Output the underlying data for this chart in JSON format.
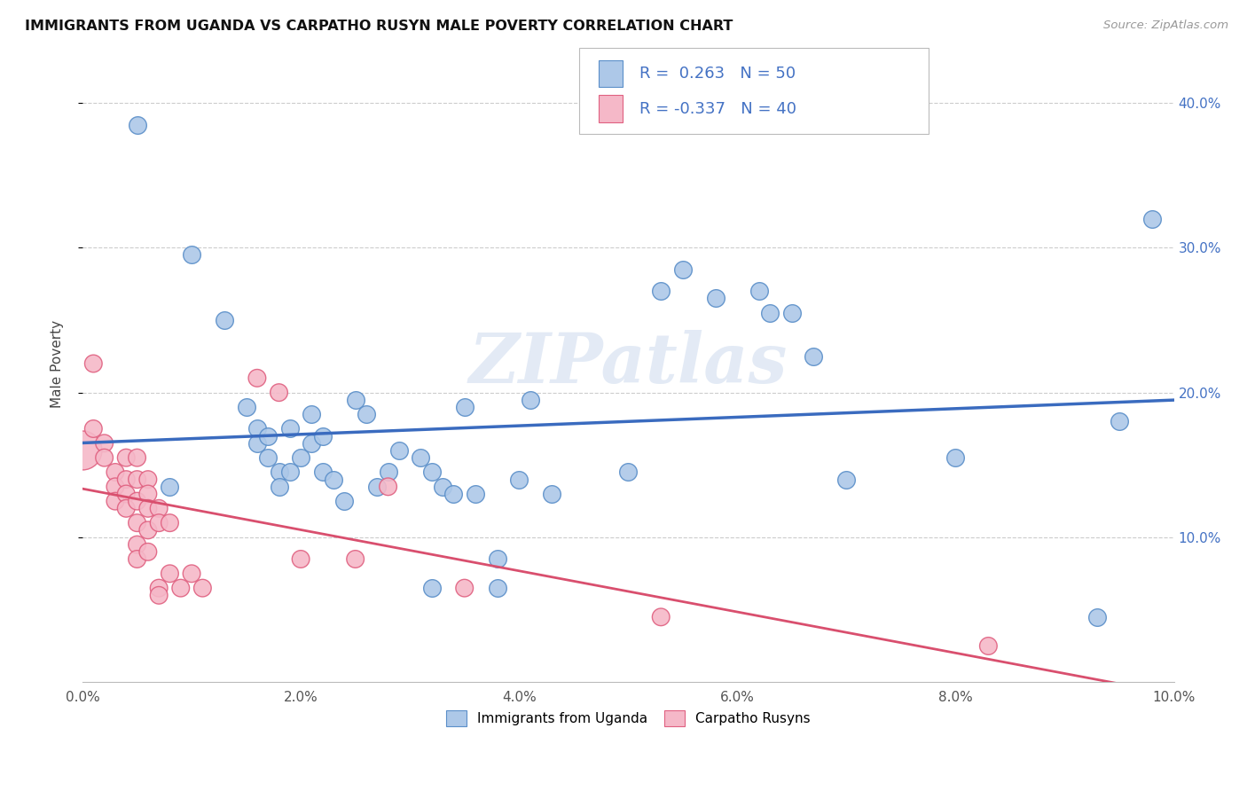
{
  "title": "IMMIGRANTS FROM UGANDA VS CARPATHO RUSYN MALE POVERTY CORRELATION CHART",
  "source": "Source: ZipAtlas.com",
  "ylabel": "Male Poverty",
  "xlim": [
    0,
    0.1
  ],
  "ylim": [
    0,
    0.44
  ],
  "xtick_labels": [
    "0.0%",
    "2.0%",
    "4.0%",
    "6.0%",
    "8.0%",
    "10.0%"
  ],
  "xtick_vals": [
    0.0,
    0.02,
    0.04,
    0.06,
    0.08,
    0.1
  ],
  "ytick_positions": [
    0.1,
    0.2,
    0.3,
    0.4
  ],
  "ytick_labels_right": [
    "10.0%",
    "20.0%",
    "30.0%",
    "40.0%"
  ],
  "legend_labels": [
    "Immigrants from Uganda",
    "Carpatho Rusyns"
  ],
  "R_blue": 0.263,
  "N_blue": 50,
  "R_pink": -0.337,
  "N_pink": 40,
  "color_blue": "#adc8e8",
  "color_pink": "#f5b8c8",
  "edge_blue": "#5b8fc9",
  "edge_pink": "#e06080",
  "line_blue": "#3a6bbf",
  "line_pink": "#d94f6e",
  "watermark": "ZIPatlas",
  "dot_size": 200,
  "blue_points": [
    [
      0.005,
      0.385
    ],
    [
      0.008,
      0.135
    ],
    [
      0.01,
      0.295
    ],
    [
      0.013,
      0.25
    ],
    [
      0.015,
      0.19
    ],
    [
      0.016,
      0.175
    ],
    [
      0.016,
      0.165
    ],
    [
      0.017,
      0.17
    ],
    [
      0.017,
      0.155
    ],
    [
      0.018,
      0.145
    ],
    [
      0.018,
      0.135
    ],
    [
      0.019,
      0.175
    ],
    [
      0.019,
      0.145
    ],
    [
      0.02,
      0.155
    ],
    [
      0.021,
      0.185
    ],
    [
      0.021,
      0.165
    ],
    [
      0.022,
      0.145
    ],
    [
      0.022,
      0.17
    ],
    [
      0.023,
      0.14
    ],
    [
      0.024,
      0.125
    ],
    [
      0.025,
      0.195
    ],
    [
      0.026,
      0.185
    ],
    [
      0.027,
      0.135
    ],
    [
      0.028,
      0.145
    ],
    [
      0.029,
      0.16
    ],
    [
      0.031,
      0.155
    ],
    [
      0.032,
      0.145
    ],
    [
      0.032,
      0.065
    ],
    [
      0.033,
      0.135
    ],
    [
      0.034,
      0.13
    ],
    [
      0.035,
      0.19
    ],
    [
      0.036,
      0.13
    ],
    [
      0.038,
      0.085
    ],
    [
      0.038,
      0.065
    ],
    [
      0.04,
      0.14
    ],
    [
      0.041,
      0.195
    ],
    [
      0.043,
      0.13
    ],
    [
      0.05,
      0.145
    ],
    [
      0.053,
      0.27
    ],
    [
      0.055,
      0.285
    ],
    [
      0.058,
      0.265
    ],
    [
      0.062,
      0.27
    ],
    [
      0.063,
      0.255
    ],
    [
      0.065,
      0.255
    ],
    [
      0.067,
      0.225
    ],
    [
      0.07,
      0.14
    ],
    [
      0.08,
      0.155
    ],
    [
      0.093,
      0.045
    ],
    [
      0.095,
      0.18
    ],
    [
      0.098,
      0.32
    ]
  ],
  "pink_points": [
    [
      0.0,
      0.16
    ],
    [
      0.001,
      0.22
    ],
    [
      0.001,
      0.175
    ],
    [
      0.002,
      0.165
    ],
    [
      0.002,
      0.155
    ],
    [
      0.003,
      0.145
    ],
    [
      0.003,
      0.135
    ],
    [
      0.003,
      0.125
    ],
    [
      0.004,
      0.155
    ],
    [
      0.004,
      0.14
    ],
    [
      0.004,
      0.13
    ],
    [
      0.004,
      0.12
    ],
    [
      0.005,
      0.155
    ],
    [
      0.005,
      0.14
    ],
    [
      0.005,
      0.125
    ],
    [
      0.005,
      0.11
    ],
    [
      0.005,
      0.095
    ],
    [
      0.005,
      0.085
    ],
    [
      0.006,
      0.14
    ],
    [
      0.006,
      0.13
    ],
    [
      0.006,
      0.12
    ],
    [
      0.006,
      0.105
    ],
    [
      0.006,
      0.09
    ],
    [
      0.007,
      0.12
    ],
    [
      0.007,
      0.11
    ],
    [
      0.007,
      0.065
    ],
    [
      0.007,
      0.06
    ],
    [
      0.008,
      0.11
    ],
    [
      0.008,
      0.075
    ],
    [
      0.009,
      0.065
    ],
    [
      0.01,
      0.075
    ],
    [
      0.011,
      0.065
    ],
    [
      0.016,
      0.21
    ],
    [
      0.018,
      0.2
    ],
    [
      0.02,
      0.085
    ],
    [
      0.025,
      0.085
    ],
    [
      0.028,
      0.135
    ],
    [
      0.035,
      0.065
    ],
    [
      0.053,
      0.045
    ],
    [
      0.083,
      0.025
    ]
  ],
  "pink_large_idx": 0
}
